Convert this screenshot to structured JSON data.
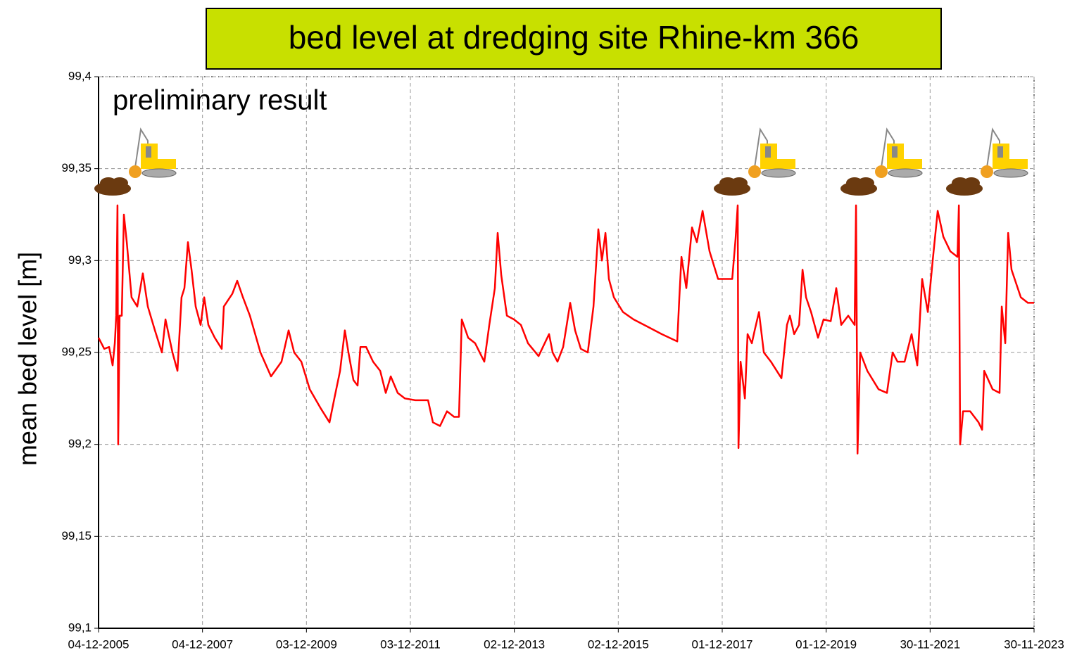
{
  "chart_data": {
    "type": "line",
    "title": "bed level at dredging site Rhine-km 366",
    "annotation": "preliminary result",
    "y_label": "mean bed level [m]",
    "color": "#ff0000",
    "grid": true,
    "xlim": [
      "04-12-2005",
      "30-11-2023"
    ],
    "xticks": [
      "04-12-2005",
      "04-12-2007",
      "03-12-2009",
      "03-12-2011",
      "02-12-2013",
      "02-12-2015",
      "01-12-2017",
      "01-12-2019",
      "30-11-2021",
      "30-11-2023"
    ],
    "ylim": [
      99.1,
      99.4
    ],
    "yticks": [
      {
        "value": 99.1,
        "label": "99,1"
      },
      {
        "value": 99.15,
        "label": "99,15"
      },
      {
        "value": 99.2,
        "label": "99,2"
      },
      {
        "value": 99.25,
        "label": "99,25"
      },
      {
        "value": 99.3,
        "label": "99,3"
      },
      {
        "value": 99.35,
        "label": "99,35"
      },
      {
        "value": 99.4,
        "label": "99,4"
      }
    ],
    "x": [
      "04-12-2005",
      "13-01-2006",
      "16-02-2006",
      "13-03-2006",
      "28-03-2006",
      "07-04-2006",
      "16-04-2006",
      "21-04-2006",
      "01-05-2006",
      "16-05-2006",
      "31-05-2006",
      "20-06-2006",
      "24-07-2006",
      "02-09-2006",
      "11-10-2006",
      "15-11-2006",
      "04-01-2007",
      "22-02-2007",
      "19-03-2007",
      "07-05-2007",
      "11-06-2007",
      "10-07-2007",
      "30-07-2007",
      "24-08-2007",
      "18-09-2007",
      "17-10-2007",
      "21-11-2007",
      "16-12-2007",
      "14-01-2008",
      "28-02-2008",
      "17-04-2008",
      "02-05-2008",
      "01-07-2008",
      "04-08-2008",
      "13-09-2008",
      "01-11-2008",
      "14-01-2009",
      "29-03-2009",
      "11-06-2009",
      "31-07-2009",
      "08-09-2009",
      "28-10-2009",
      "26-12-2009",
      "10-03-2010",
      "14-05-2010",
      "17-06-2010",
      "27-07-2010",
      "30-08-2010",
      "24-09-2010",
      "29-10-2010",
      "27-11-2010",
      "17-12-2010",
      "26-01-2011",
      "16-03-2011",
      "05-05-2011",
      "13-06-2011",
      "18-07-2011",
      "05-09-2011",
      "25-10-2011",
      "07-01-2012",
      "05-04-2012",
      "09-05-2012",
      "28-06-2012",
      "16-08-2012",
      "05-10-2012",
      "08-11-2012",
      "28-11-2012",
      "12-01-2013",
      "02-03-2013",
      "05-05-2013",
      "09-06-2013",
      "18-07-2013",
      "07-08-2013",
      "01-09-2013",
      "11-10-2013",
      "29-11-2013",
      "17-01-2014",
      "08-03-2014",
      "21-05-2014",
      "03-08-2014",
      "28-08-2014",
      "01-10-2014",
      "10-11-2014",
      "05-12-2014",
      "29-12-2014",
      "02-02-2015",
      "14-03-2015",
      "02-05-2015",
      "11-06-2015",
      "15-07-2015",
      "09-08-2015",
      "03-09-2015",
      "27-09-2015",
      "01-11-2015",
      "04-01-2016",
      "18-03-2016",
      "25-06-2016",
      "02-10-2016",
      "19-01-2017",
      "03-02-2017",
      "18-02-2017",
      "24-03-2017",
      "03-05-2017",
      "06-06-2017",
      "16-07-2017",
      "03-09-2017",
      "02-11-2017",
      "09-02-2018",
      "05-03-2018",
      "20-03-2018",
      "25-03-2018",
      "09-04-2018",
      "09-05-2018",
      "28-05-2018",
      "27-06-2018",
      "17-07-2018",
      "16-08-2018",
      "19-09-2018",
      "08-11-2018",
      "21-01-2019",
      "01-03-2019",
      "21-03-2019",
      "20-04-2019",
      "25-05-2019",
      "18-06-2019",
      "13-07-2019",
      "17-08-2019",
      "05-10-2019",
      "13-11-2019",
      "02-01-2020",
      "10-02-2020",
      "16-03-2020",
      "04-05-2020",
      "18-06-2020",
      "28-06-2020",
      "08-07-2020",
      "27-07-2020",
      "15-09-2020",
      "03-12-2020",
      "31-01-2021",
      "12-03-2021",
      "15-04-2021",
      "04-06-2021",
      "23-07-2021",
      "01-09-2021",
      "05-10-2021",
      "14-11-2021",
      "18-12-2021",
      "22-01-2022",
      "03-03-2022",
      "21-04-2022",
      "10-06-2022",
      "20-06-2022",
      "29-06-2022",
      "19-07-2022",
      "07-09-2022",
      "05-11-2022",
      "30-11-2022",
      "15-12-2022",
      "12-02-2023",
      "02-04-2023",
      "17-04-2023",
      "12-05-2023",
      "01-06-2023",
      "25-06-2023",
      "29-08-2023",
      "17-10-2023",
      "30-11-2023"
    ],
    "values": [
      99.258,
      99.252,
      99.253,
      99.243,
      99.255,
      99.27,
      99.33,
      99.2,
      99.27,
      99.27,
      99.325,
      99.31,
      99.28,
      99.275,
      99.293,
      99.275,
      99.262,
      99.25,
      99.268,
      99.25,
      99.24,
      99.28,
      99.285,
      99.31,
      99.295,
      99.275,
      99.265,
      99.28,
      99.265,
      99.258,
      99.252,
      99.275,
      99.282,
      99.289,
      99.28,
      99.27,
      99.25,
      99.237,
      99.245,
      99.262,
      99.25,
      99.245,
      99.23,
      99.22,
      99.212,
      99.225,
      99.24,
      99.262,
      99.25,
      99.235,
      99.232,
      99.253,
      99.253,
      99.245,
      99.24,
      99.228,
      99.237,
      99.228,
      99.225,
      99.224,
      99.224,
      99.212,
      99.21,
      99.218,
      99.215,
      99.215,
      99.268,
      99.258,
      99.255,
      99.245,
      99.265,
      99.285,
      99.315,
      99.292,
      99.27,
      99.268,
      99.265,
      99.255,
      99.248,
      99.26,
      99.25,
      99.245,
      99.253,
      99.265,
      99.277,
      99.262,
      99.252,
      99.25,
      99.275,
      99.317,
      99.3,
      99.315,
      99.29,
      99.28,
      99.272,
      99.268,
      99.264,
      99.26,
      99.256,
      99.28,
      99.302,
      99.285,
      99.318,
      99.31,
      99.327,
      99.305,
      99.29,
      99.29,
      99.312,
      99.33,
      99.198,
      99.245,
      99.225,
      99.26,
      99.255,
      99.262,
      99.272,
      99.25,
      99.245,
      99.236,
      99.265,
      99.27,
      99.26,
      99.265,
      99.295,
      99.28,
      99.272,
      99.258,
      99.268,
      99.267,
      99.285,
      99.265,
      99.27,
      99.265,
      99.33,
      99.195,
      99.25,
      99.24,
      99.23,
      99.228,
      99.25,
      99.245,
      99.245,
      99.26,
      99.243,
      99.29,
      99.272,
      99.3,
      99.327,
      99.313,
      99.305,
      99.302,
      99.33,
      99.2,
      99.218,
      99.218,
      99.212,
      99.208,
      99.24,
      99.23,
      99.228,
      99.275,
      99.255,
      99.315,
      99.295,
      99.28,
      99.277,
      99.277
    ]
  }
}
